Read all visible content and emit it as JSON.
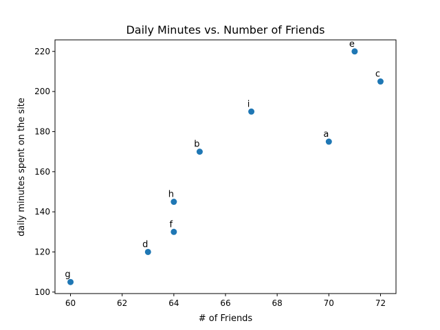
{
  "chart_data": {
    "type": "scatter",
    "title": "Daily Minutes vs. Number of Friends",
    "xlabel": "# of Friends",
    "ylabel": "daily minutes spent on the site",
    "xlim": [
      59.4,
      72.6
    ],
    "ylim": [
      99.25,
      225.75
    ],
    "xticks": [
      60,
      62,
      64,
      66,
      68,
      70,
      72
    ],
    "yticks": [
      100,
      120,
      140,
      160,
      180,
      200,
      220
    ],
    "grid": false,
    "color": "#1f77b4",
    "points": [
      {
        "label": "a",
        "x": 70,
        "y": 175
      },
      {
        "label": "b",
        "x": 65,
        "y": 170
      },
      {
        "label": "c",
        "x": 72,
        "y": 205
      },
      {
        "label": "d",
        "x": 63,
        "y": 120
      },
      {
        "label": "e",
        "x": 71,
        "y": 220
      },
      {
        "label": "f",
        "x": 64,
        "y": 130
      },
      {
        "label": "g",
        "x": 60,
        "y": 105
      },
      {
        "label": "h",
        "x": 64,
        "y": 145
      },
      {
        "label": "i",
        "x": 67,
        "y": 190
      }
    ]
  }
}
